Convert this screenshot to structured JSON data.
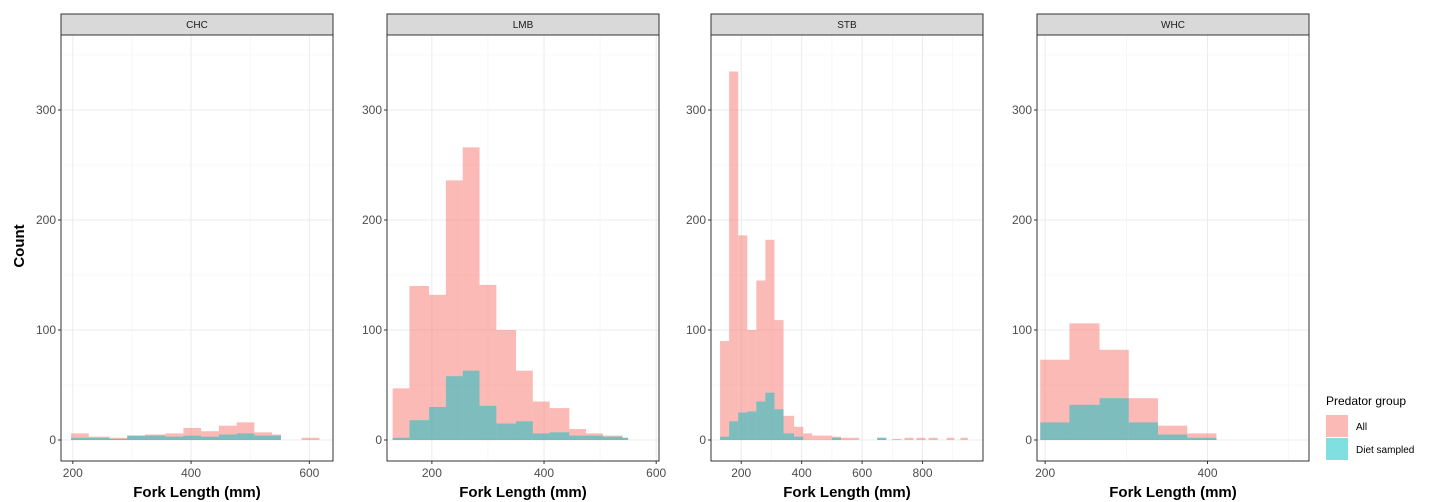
{
  "chart_data": {
    "type": "bar",
    "ylabel": "Count",
    "xlabel": "Fork Length (mm)",
    "grid": true,
    "ylim": [
      0,
      355
    ],
    "y_ticks": [
      0,
      100,
      200,
      300
    ],
    "legend": {
      "title": "Predator group",
      "position": "right",
      "entries": [
        {
          "label": "All",
          "color": "#F8766D"
        },
        {
          "label": "Diet sampled",
          "color": "#00BFC4"
        }
      ]
    },
    "facets": [
      {
        "strip": "CHC",
        "xlim": [
          180,
          640
        ],
        "x_ticks": [
          200,
          400,
          600
        ],
        "series": [
          {
            "name": "All",
            "bins": [
              {
                "x0": 197,
                "x1": 227,
                "value": 6
              },
              {
                "x0": 227,
                "x1": 262,
                "value": 3
              },
              {
                "x0": 262,
                "x1": 292,
                "value": 2
              },
              {
                "x0": 292,
                "x1": 322,
                "value": 4
              },
              {
                "x0": 322,
                "x1": 357,
                "value": 5
              },
              {
                "x0": 357,
                "x1": 387,
                "value": 6
              },
              {
                "x0": 387,
                "x1": 417,
                "value": 11
              },
              {
                "x0": 417,
                "x1": 447,
                "value": 8
              },
              {
                "x0": 447,
                "x1": 477,
                "value": 13
              },
              {
                "x0": 477,
                "x1": 507,
                "value": 16
              },
              {
                "x0": 507,
                "x1": 537,
                "value": 7
              },
              {
                "x0": 537,
                "x1": 552,
                "value": 5
              },
              {
                "x0": 587,
                "x1": 617,
                "value": 2
              }
            ]
          },
          {
            "name": "Diet sampled",
            "bins": [
              {
                "x0": 197,
                "x1": 262,
                "value": 2
              },
              {
                "x0": 262,
                "x1": 292,
                "value": 1
              },
              {
                "x0": 292,
                "x1": 357,
                "value": 4
              },
              {
                "x0": 357,
                "x1": 387,
                "value": 3
              },
              {
                "x0": 387,
                "x1": 417,
                "value": 4
              },
              {
                "x0": 417,
                "x1": 447,
                "value": 3
              },
              {
                "x0": 447,
                "x1": 477,
                "value": 5
              },
              {
                "x0": 477,
                "x1": 507,
                "value": 6
              },
              {
                "x0": 507,
                "x1": 552,
                "value": 4
              }
            ]
          }
        ]
      },
      {
        "strip": "LMB",
        "xlim": [
          120,
          605
        ],
        "x_ticks": [
          200,
          400,
          600
        ],
        "series": [
          {
            "name": "All",
            "bins": [
              {
                "x0": 130,
                "x1": 160,
                "value": 47
              },
              {
                "x0": 160,
                "x1": 195,
                "value": 140
              },
              {
                "x0": 195,
                "x1": 225,
                "value": 132
              },
              {
                "x0": 225,
                "x1": 255,
                "value": 236
              },
              {
                "x0": 255,
                "x1": 285,
                "value": 266
              },
              {
                "x0": 285,
                "x1": 315,
                "value": 141
              },
              {
                "x0": 315,
                "x1": 350,
                "value": 100
              },
              {
                "x0": 350,
                "x1": 380,
                "value": 63
              },
              {
                "x0": 380,
                "x1": 410,
                "value": 35
              },
              {
                "x0": 410,
                "x1": 445,
                "value": 29
              },
              {
                "x0": 445,
                "x1": 475,
                "value": 10
              },
              {
                "x0": 475,
                "x1": 505,
                "value": 6
              },
              {
                "x0": 505,
                "x1": 540,
                "value": 4
              },
              {
                "x0": 540,
                "x1": 550,
                "value": 2
              }
            ]
          },
          {
            "name": "Diet sampled",
            "bins": [
              {
                "x0": 130,
                "x1": 160,
                "value": 2
              },
              {
                "x0": 160,
                "x1": 195,
                "value": 18
              },
              {
                "x0": 195,
                "x1": 225,
                "value": 30
              },
              {
                "x0": 225,
                "x1": 255,
                "value": 58
              },
              {
                "x0": 255,
                "x1": 285,
                "value": 63
              },
              {
                "x0": 285,
                "x1": 315,
                "value": 31
              },
              {
                "x0": 315,
                "x1": 350,
                "value": 15
              },
              {
                "x0": 350,
                "x1": 380,
                "value": 17
              },
              {
                "x0": 380,
                "x1": 410,
                "value": 6
              },
              {
                "x0": 410,
                "x1": 445,
                "value": 7
              },
              {
                "x0": 445,
                "x1": 475,
                "value": 4
              },
              {
                "x0": 475,
                "x1": 505,
                "value": 4
              },
              {
                "x0": 505,
                "x1": 540,
                "value": 3
              },
              {
                "x0": 540,
                "x1": 550,
                "value": 2
              }
            ]
          }
        ]
      },
      {
        "strip": "STB",
        "xlim": [
          100,
          1000
        ],
        "x_ticks": [
          200,
          400,
          600,
          800
        ],
        "series": [
          {
            "name": "All",
            "bins": [
              {
                "x0": 130,
                "x1": 160,
                "value": 90
              },
              {
                "x0": 160,
                "x1": 190,
                "value": 335
              },
              {
                "x0": 190,
                "x1": 220,
                "value": 186
              },
              {
                "x0": 220,
                "x1": 250,
                "value": 100
              },
              {
                "x0": 250,
                "x1": 280,
                "value": 145
              },
              {
                "x0": 280,
                "x1": 310,
                "value": 182
              },
              {
                "x0": 310,
                "x1": 340,
                "value": 109
              },
              {
                "x0": 340,
                "x1": 375,
                "value": 22
              },
              {
                "x0": 375,
                "x1": 405,
                "value": 12
              },
              {
                "x0": 405,
                "x1": 435,
                "value": 6
              },
              {
                "x0": 435,
                "x1": 470,
                "value": 4
              },
              {
                "x0": 470,
                "x1": 500,
                "value": 4
              },
              {
                "x0": 500,
                "x1": 530,
                "value": 3
              },
              {
                "x0": 530,
                "x1": 560,
                "value": 2
              },
              {
                "x0": 560,
                "x1": 590,
                "value": 2
              },
              {
                "x0": 650,
                "x1": 680,
                "value": 2
              },
              {
                "x0": 700,
                "x1": 730,
                "value": 1
              },
              {
                "x0": 740,
                "x1": 770,
                "value": 2
              },
              {
                "x0": 780,
                "x1": 810,
                "value": 2
              },
              {
                "x0": 820,
                "x1": 850,
                "value": 2
              },
              {
                "x0": 880,
                "x1": 905,
                "value": 2
              },
              {
                "x0": 925,
                "x1": 950,
                "value": 2
              }
            ]
          },
          {
            "name": "Diet sampled",
            "bins": [
              {
                "x0": 130,
                "x1": 160,
                "value": 3
              },
              {
                "x0": 160,
                "x1": 190,
                "value": 17
              },
              {
                "x0": 190,
                "x1": 220,
                "value": 25
              },
              {
                "x0": 220,
                "x1": 250,
                "value": 26
              },
              {
                "x0": 250,
                "x1": 280,
                "value": 35
              },
              {
                "x0": 280,
                "x1": 310,
                "value": 43
              },
              {
                "x0": 310,
                "x1": 340,
                "value": 28
              },
              {
                "x0": 340,
                "x1": 375,
                "value": 6
              },
              {
                "x0": 375,
                "x1": 405,
                "value": 3
              },
              {
                "x0": 500,
                "x1": 530,
                "value": 2
              },
              {
                "x0": 650,
                "x1": 680,
                "value": 2
              }
            ]
          }
        ]
      },
      {
        "strip": "WHC",
        "xlim": [
          190,
          525
        ],
        "x_ticks": [
          200,
          400
        ],
        "series": [
          {
            "name": "All",
            "bins": [
              {
                "x0": 194,
                "x1": 230,
                "value": 73
              },
              {
                "x0": 230,
                "x1": 267,
                "value": 106
              },
              {
                "x0": 267,
                "x1": 303,
                "value": 82
              },
              {
                "x0": 303,
                "x1": 339,
                "value": 38
              },
              {
                "x0": 339,
                "x1": 375,
                "value": 13
              },
              {
                "x0": 375,
                "x1": 411,
                "value": 6
              }
            ]
          },
          {
            "name": "Diet sampled",
            "bins": [
              {
                "x0": 194,
                "x1": 230,
                "value": 16
              },
              {
                "x0": 230,
                "x1": 267,
                "value": 32
              },
              {
                "x0": 267,
                "x1": 303,
                "value": 38
              },
              {
                "x0": 303,
                "x1": 339,
                "value": 16
              },
              {
                "x0": 339,
                "x1": 375,
                "value": 5
              },
              {
                "x0": 375,
                "x1": 411,
                "value": 2
              }
            ]
          }
        ]
      }
    ]
  }
}
